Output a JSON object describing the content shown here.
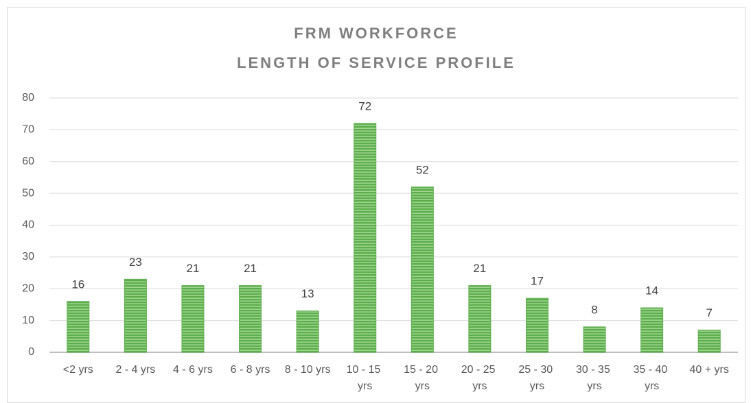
{
  "chart_data": {
    "type": "bar",
    "title": "FRM WORKFORCE",
    "subtitle": "LENGTH OF SERVICE PROFILE",
    "categories": [
      "<2 yrs",
      "2 - 4 yrs",
      "4 - 6 yrs",
      "6 - 8 yrs",
      "8 - 10 yrs",
      "10 - 15 yrs",
      "15 - 20 yrs",
      "20 - 25 yrs",
      "25 - 30 yrs",
      "30 - 35 yrs",
      "35 - 40 yrs",
      "40 + yrs"
    ],
    "values": [
      16,
      23,
      21,
      21,
      13,
      72,
      52,
      21,
      17,
      8,
      14,
      7
    ],
    "color": "#5cae4c",
    "ylim": [
      0,
      80
    ],
    "yticks": [
      0,
      10,
      20,
      30,
      40,
      50,
      60,
      70,
      80
    ],
    "grid": true
  }
}
